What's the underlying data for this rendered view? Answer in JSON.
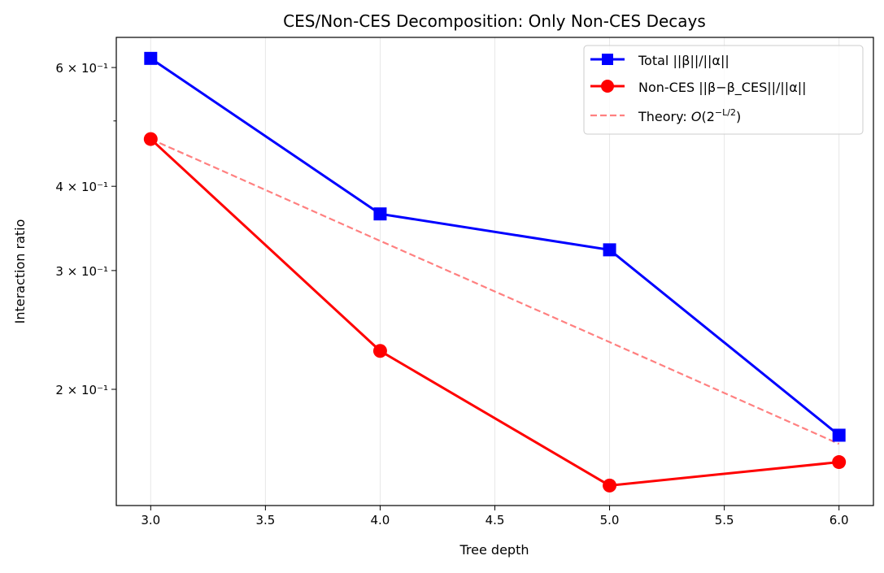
{
  "chart_data": {
    "type": "line",
    "title": "CES/Non-CES Decomposition: Only Non-CES Decays",
    "xlabel": "Tree depth",
    "ylabel": "Interaction ratio",
    "xlim": [
      2.85,
      6.15
    ],
    "ylim": [
      0.1345,
      0.665
    ],
    "yscale": "log",
    "grid": "vertical, light",
    "legend_placement": "top-right",
    "x": [
      3.0,
      4.0,
      5.0,
      6.0
    ],
    "xticks": [
      3.0,
      3.5,
      4.0,
      4.5,
      5.0,
      5.5,
      6.0
    ],
    "xtick_labels": [
      "3.0",
      "3.5",
      "4.0",
      "4.5",
      "5.0",
      "5.5",
      "6.0"
    ],
    "yticks": [
      0.2,
      0.3,
      0.4,
      0.6
    ],
    "ytick_labels": [
      "2 × 10⁻¹",
      "3 × 10⁻¹",
      "4 × 10⁻¹",
      "6 × 10⁻¹"
    ],
    "yminor_unlabeled": [
      0.5
    ],
    "series": [
      {
        "name": "Total ||β||/||α||",
        "values": [
          0.619,
          0.364,
          0.322,
          0.171
        ],
        "color": "#0000ff",
        "marker": "square",
        "style": "solid"
      },
      {
        "name": "Non-CES ||β−β_CES||/||α||",
        "values": [
          0.47,
          0.228,
          0.144,
          0.156
        ],
        "color": "#ff0000",
        "marker": "circle",
        "style": "solid"
      },
      {
        "name_parts": {
          "prefix": "Theory: ",
          "func": "O",
          "base": "(2",
          "exp": "−L/2",
          "close": ")"
        },
        "values": [
          0.47,
          0.332,
          0.235,
          0.166
        ],
        "color": "#ff8080",
        "marker": "none",
        "style": "dashed"
      }
    ]
  }
}
